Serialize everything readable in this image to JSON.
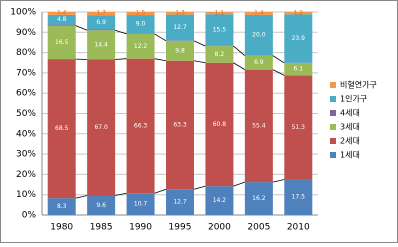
{
  "chart_data": {
    "type": "stacked-bar",
    "categories": [
      "1980",
      "1985",
      "1990",
      "1995",
      "2000",
      "2005",
      "2010"
    ],
    "series": [
      {
        "name": "1세대",
        "color": "#4f81bd",
        "values": [
          8.3,
          9.6,
          10.7,
          12.7,
          14.2,
          16.2,
          17.5
        ],
        "value_labels": [
          "8.3",
          "9.6",
          "10.7",
          "12.7",
          "14.2",
          "16.2",
          "17.5"
        ]
      },
      {
        "name": "2세대",
        "color": "#c0504d",
        "values": [
          68.5,
          67.0,
          66.3,
          63.3,
          60.8,
          55.4,
          51.3
        ],
        "value_labels": [
          "68.5",
          "67.0",
          "66.3",
          "63.3",
          "60.8",
          "55.4",
          "51.3"
        ]
      },
      {
        "name": "3세대",
        "color": "#9bbb59",
        "values": [
          16.5,
          14.4,
          12.2,
          9.8,
          8.2,
          6.9,
          6.1
        ],
        "value_labels": [
          "16.5",
          "14.4",
          "12.2",
          "9.8",
          "8.2",
          "6.9",
          "6.1"
        ]
      },
      {
        "name": "4세대",
        "color": "#8064a2",
        "values": [
          0.5,
          0.4,
          0.3,
          0.2,
          0.2,
          0.1,
          0.1
        ]
      },
      {
        "name": "1인가구",
        "color": "#4bacc6",
        "values": [
          4.8,
          6.9,
          9.0,
          12.7,
          15.5,
          20.0,
          23.9
        ],
        "value_labels": [
          "4.8",
          "6.9",
          "9.0",
          "12.7",
          "15.5",
          "20.0",
          "23.9"
        ]
      },
      {
        "name": "비혈연가구",
        "color": "#f79646",
        "values": [
          1.4,
          1.7,
          1.5,
          1.3,
          1.1,
          1.4,
          1.2
        ],
        "value_labels": [
          "1.4",
          "1.7",
          "1.5",
          "1.3",
          "1.1",
          "1.4",
          "1.2"
        ]
      }
    ],
    "ylim": [
      0,
      100
    ],
    "yticks": [
      {
        "value": 0,
        "label": "0%"
      },
      {
        "value": 10,
        "label": "10%"
      },
      {
        "value": 20,
        "label": "20%"
      },
      {
        "value": 30,
        "label": "30%"
      },
      {
        "value": 40,
        "label": "40%"
      },
      {
        "value": 50,
        "label": "50%"
      },
      {
        "value": 60,
        "label": "60%"
      },
      {
        "value": 70,
        "label": "70%"
      },
      {
        "value": 80,
        "label": "80%"
      },
      {
        "value": 90,
        "label": "90%"
      },
      {
        "value": 100,
        "label": "100%"
      }
    ],
    "grid": true,
    "legend": "right"
  }
}
